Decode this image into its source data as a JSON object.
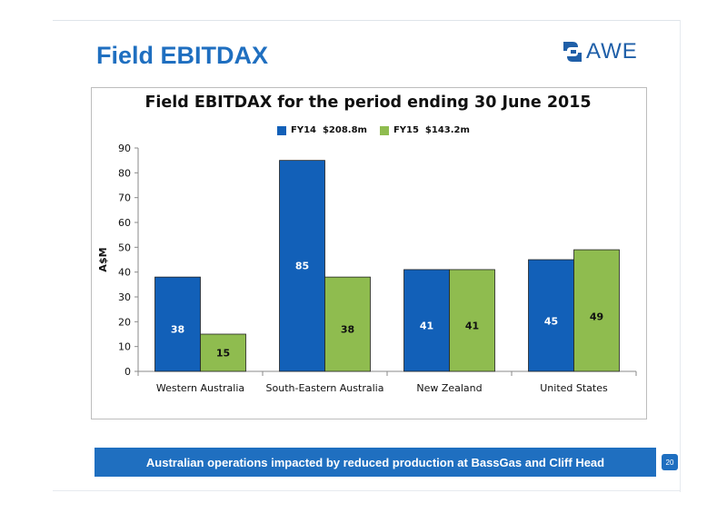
{
  "slide": {
    "title": "Field EBITDAX",
    "logo_text": "AWE",
    "banner": "Australian operations impacted by reduced production at BassGas and Cliff Head",
    "page_number": "20"
  },
  "colors": {
    "accent": "#1f6fc0",
    "fy14": "#1260b8",
    "fy15": "#8fbc4f"
  },
  "chart_data": {
    "type": "bar",
    "title": "Field EBITDAX for the period ending 30 June 2015",
    "xlabel": "",
    "ylabel": "A$M",
    "ylim": [
      0,
      90
    ],
    "yticks": [
      0,
      10,
      20,
      30,
      40,
      50,
      60,
      70,
      80,
      90
    ],
    "grid": false,
    "legend_position": "top",
    "categories": [
      "Western Australia",
      "South-Eastern Australia",
      "New Zealand",
      "United States"
    ],
    "series": [
      {
        "name": "FY14  $208.8m",
        "values": [
          38,
          85,
          41,
          45
        ],
        "labels": [
          "38",
          "85",
          "41",
          "45"
        ]
      },
      {
        "name": "FY15  $143.2m",
        "values": [
          15,
          38,
          41,
          49
        ],
        "labels": [
          "15",
          "38",
          "41",
          "49"
        ]
      }
    ]
  }
}
